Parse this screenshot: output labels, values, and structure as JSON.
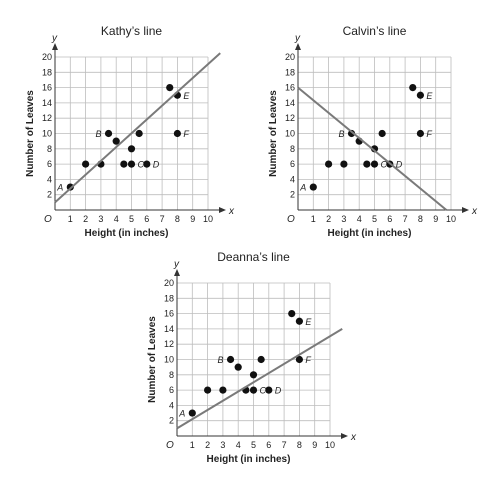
{
  "chart_data": [
    {
      "type": "scatter",
      "title": "Kathy’s line",
      "xlabel": "Height (in inches)",
      "ylabel": "Number of Leaves",
      "x_axis_letter": "x",
      "y_axis_letter": "y",
      "origin_label": "O",
      "xlim": [
        0,
        10
      ],
      "ylim": [
        0,
        20
      ],
      "x_ticks": [
        1,
        2,
        3,
        4,
        5,
        6,
        7,
        8,
        9,
        10
      ],
      "y_ticks": [
        2,
        4,
        6,
        8,
        10,
        12,
        14,
        16,
        18,
        20
      ],
      "grid": true,
      "points": [
        {
          "x": 1,
          "y": 3,
          "label": "A"
        },
        {
          "x": 2,
          "y": 6,
          "label": ""
        },
        {
          "x": 3,
          "y": 6,
          "label": ""
        },
        {
          "x": 3.5,
          "y": 10,
          "label": "B"
        },
        {
          "x": 4,
          "y": 9,
          "label": ""
        },
        {
          "x": 4.5,
          "y": 6,
          "label": ""
        },
        {
          "x": 5,
          "y": 8,
          "label": ""
        },
        {
          "x": 5.5,
          "y": 10,
          "label": ""
        },
        {
          "x": 5,
          "y": 6,
          "label": "C"
        },
        {
          "x": 6,
          "y": 6,
          "label": "D"
        },
        {
          "x": 7.5,
          "y": 16,
          "label": ""
        },
        {
          "x": 8,
          "y": 15,
          "label": "E"
        },
        {
          "x": 8,
          "y": 10,
          "label": "F"
        }
      ],
      "line": {
        "x1": 0,
        "y1": 1,
        "x2": 10.8,
        "y2": 20.5
      }
    },
    {
      "type": "scatter",
      "title": "Calvin’s line",
      "xlabel": "Height (in inches)",
      "ylabel": "Number of Leaves",
      "x_axis_letter": "x",
      "y_axis_letter": "y",
      "origin_label": "O",
      "xlim": [
        0,
        10
      ],
      "ylim": [
        0,
        20
      ],
      "x_ticks": [
        1,
        2,
        3,
        4,
        5,
        6,
        7,
        8,
        9,
        10
      ],
      "y_ticks": [
        2,
        4,
        6,
        8,
        10,
        12,
        14,
        16,
        18,
        20
      ],
      "grid": true,
      "points": [
        {
          "x": 1,
          "y": 3,
          "label": "A"
        },
        {
          "x": 2,
          "y": 6,
          "label": ""
        },
        {
          "x": 3,
          "y": 6,
          "label": ""
        },
        {
          "x": 3.5,
          "y": 10,
          "label": "B"
        },
        {
          "x": 4,
          "y": 9,
          "label": ""
        },
        {
          "x": 4.5,
          "y": 6,
          "label": ""
        },
        {
          "x": 5,
          "y": 8,
          "label": ""
        },
        {
          "x": 5.5,
          "y": 10,
          "label": ""
        },
        {
          "x": 5,
          "y": 6,
          "label": "C"
        },
        {
          "x": 6,
          "y": 6,
          "label": "D"
        },
        {
          "x": 7.5,
          "y": 16,
          "label": ""
        },
        {
          "x": 8,
          "y": 15,
          "label": "E"
        },
        {
          "x": 8,
          "y": 10,
          "label": "F"
        }
      ],
      "line": {
        "x1": 0,
        "y1": 16,
        "x2": 9.7,
        "y2": 0
      }
    },
    {
      "type": "scatter",
      "title": "Deanna’s line",
      "xlabel": "Height (in inches)",
      "ylabel": "Number of Leaves",
      "x_axis_letter": "x",
      "y_axis_letter": "y",
      "origin_label": "O",
      "xlim": [
        0,
        10
      ],
      "ylim": [
        0,
        20
      ],
      "x_ticks": [
        1,
        2,
        3,
        4,
        5,
        6,
        7,
        8,
        9,
        10
      ],
      "y_ticks": [
        2,
        4,
        6,
        8,
        10,
        12,
        14,
        16,
        18,
        20
      ],
      "grid": true,
      "points": [
        {
          "x": 1,
          "y": 3,
          "label": "A"
        },
        {
          "x": 2,
          "y": 6,
          "label": ""
        },
        {
          "x": 3,
          "y": 6,
          "label": ""
        },
        {
          "x": 3.5,
          "y": 10,
          "label": "B"
        },
        {
          "x": 4,
          "y": 9,
          "label": ""
        },
        {
          "x": 4.5,
          "y": 6,
          "label": ""
        },
        {
          "x": 5,
          "y": 8,
          "label": ""
        },
        {
          "x": 5.5,
          "y": 10,
          "label": ""
        },
        {
          "x": 5,
          "y": 6,
          "label": "C"
        },
        {
          "x": 6,
          "y": 6,
          "label": "D"
        },
        {
          "x": 7.5,
          "y": 16,
          "label": ""
        },
        {
          "x": 8,
          "y": 15,
          "label": "E"
        },
        {
          "x": 8,
          "y": 10,
          "label": "F"
        }
      ],
      "line": {
        "x1": 0,
        "y1": 1,
        "x2": 10.8,
        "y2": 14
      }
    }
  ]
}
